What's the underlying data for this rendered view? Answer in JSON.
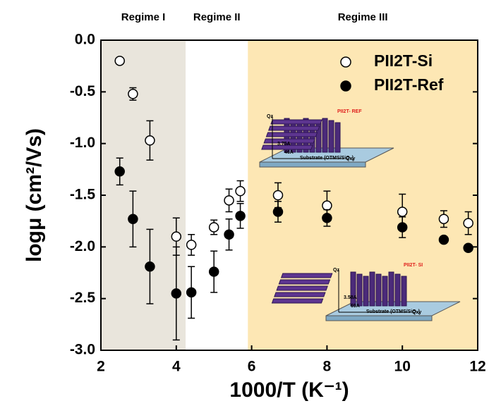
{
  "chart_data": {
    "type": "scatter",
    "x_label": "1000/T (K⁻¹)",
    "y_label": "logμ (cm²/Vs)",
    "xlim": [
      2,
      12
    ],
    "xticks": [
      2,
      4,
      6,
      8,
      10,
      12
    ],
    "ylim": [
      -3,
      0
    ],
    "yticks": [
      {
        "value": -3,
        "label": "-3.0"
      },
      -2.5,
      {
        "value": -2,
        "label": "-2.0"
      },
      -1.5,
      {
        "value": -1,
        "label": "-1.0"
      },
      -0.5,
      {
        "value": 0,
        "label": "0.0"
      }
    ],
    "legend": "top-right",
    "regions": [
      {
        "label": "Regime I",
        "range": [
          2,
          4.25
        ],
        "color": "#e9e5dc"
      },
      {
        "label": "Regime II",
        "range": [
          4.25,
          5.9
        ],
        "color": "#ffffff"
      },
      {
        "label": "Regime III",
        "range": [
          5.9,
          12
        ],
        "color": "#fde7b4"
      }
    ],
    "series": [
      {
        "name": "PII2T-Si",
        "color": "#000000",
        "marker": "open",
        "x": [
          2.5,
          2.85,
          3.3,
          4.0,
          4.4,
          5.0,
          5.4,
          5.7,
          6.7,
          8.0,
          10.0,
          11.1,
          11.75
        ],
        "values": [
          -0.2,
          -0.52,
          -0.97,
          -1.9,
          -1.98,
          -1.81,
          -1.55,
          -1.46,
          -1.5,
          -1.6,
          -1.66,
          -1.73,
          -1.77
        ],
        "errors": [
          0.02,
          0.06,
          0.19,
          0.18,
          0.1,
          0.07,
          0.11,
          0.1,
          0.12,
          0.14,
          0.17,
          0.08,
          0.11
        ]
      },
      {
        "name": "PII2T-Ref",
        "color": "#000000",
        "marker": "filled",
        "x": [
          2.5,
          2.85,
          3.3,
          4.0,
          4.4,
          5.0,
          5.4,
          5.7,
          6.7,
          8.0,
          10.0,
          11.1,
          11.75
        ],
        "values": [
          -1.27,
          -1.73,
          -2.19,
          -2.45,
          -2.44,
          -2.24,
          -1.88,
          -1.7,
          -1.66,
          -1.72,
          -1.81,
          -1.93,
          -2.01
        ],
        "errors": [
          0.13,
          0.27,
          0.36,
          0.45,
          0.25,
          0.2,
          0.15,
          0.12,
          0.1,
          0.08,
          0.1,
          0.02,
          0.03
        ]
      }
    ],
    "insets": [
      {
        "title": "PII2T- REF",
        "substrate": "Substrate (OTMS/SiO₂)",
        "axis_z": "Qz",
        "axis_xy": "Qxy",
        "spacing_a": "3.75A",
        "spacing_b": "46A"
      },
      {
        "title": "PII2T- SI",
        "substrate": "Substrate (OTMS/SiO₂)",
        "axis_z": "Qz",
        "axis_xy": "Qxy",
        "spacing_a": "3.58A",
        "spacing_b": "69A"
      }
    ]
  }
}
